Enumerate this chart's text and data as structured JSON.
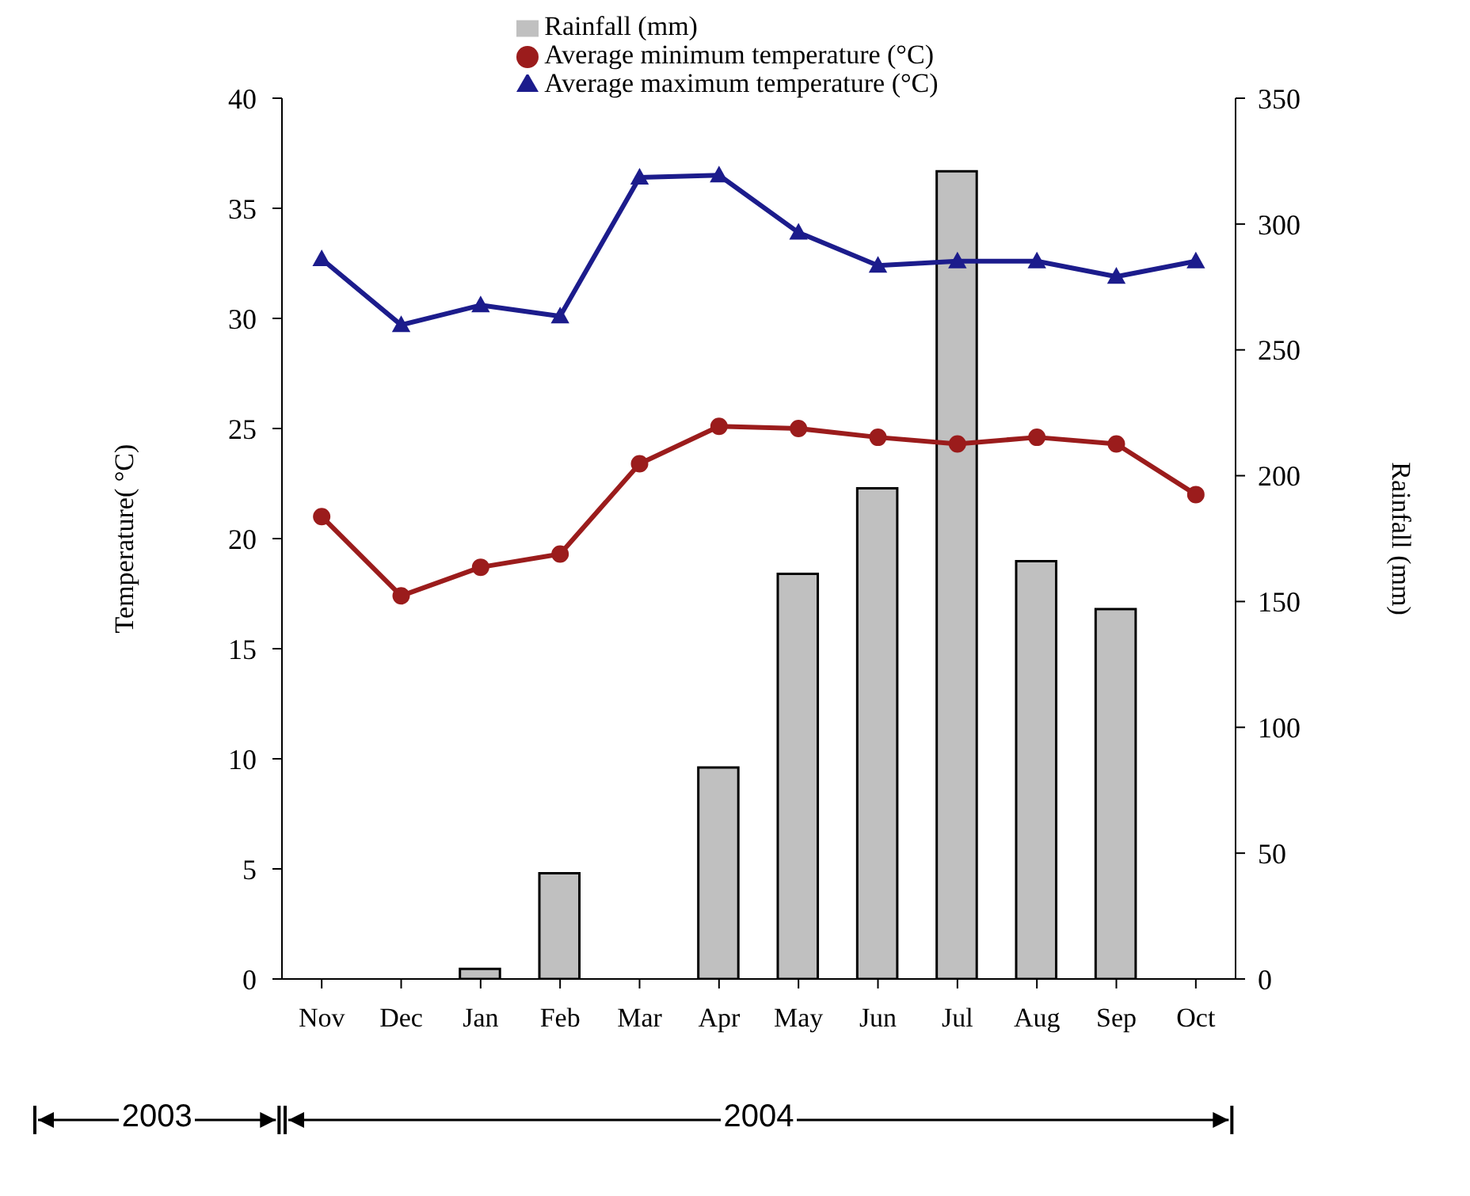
{
  "chart_data": {
    "type": "bar",
    "categories": [
      "Nov",
      "Dec",
      "Jan",
      "Feb",
      "Mar",
      "Apr",
      "May",
      "Jun",
      "Jul",
      "Aug",
      "Sep",
      "Oct"
    ],
    "ylabel": "Temperature( °C)",
    "y2label": "Rainfall (mm)",
    "ylim": [
      0,
      40
    ],
    "yticks": [
      0,
      5,
      10,
      15,
      20,
      25,
      30,
      35,
      40
    ],
    "y2lim": [
      0,
      350
    ],
    "y2ticks": [
      0,
      50,
      100,
      150,
      200,
      250,
      300,
      350
    ],
    "legend": "top",
    "grid": false,
    "annotations": [
      "2003",
      "2004"
    ],
    "series": [
      {
        "name": "Rainfall (mm)",
        "axis": "y2",
        "color": "#c0c0c0",
        "values": [
          0,
          0,
          4,
          42,
          0,
          84,
          161,
          195,
          321,
          166,
          147,
          0
        ]
      },
      {
        "name": "Average minimum temperature (°C)",
        "type": "line",
        "marker": "circle",
        "color": "#9b1c1c",
        "values": [
          21.0,
          17.4,
          18.7,
          19.3,
          23.4,
          25.1,
          25.0,
          24.6,
          24.3,
          24.6,
          24.3,
          22.0
        ]
      },
      {
        "name": "Average maximum temperature (°C)",
        "type": "line",
        "marker": "triangle",
        "color": "#1c1c8c",
        "values": [
          32.7,
          29.7,
          30.6,
          30.1,
          36.4,
          36.5,
          33.9,
          32.4,
          32.6,
          32.6,
          31.9,
          32.6
        ]
      }
    ]
  }
}
